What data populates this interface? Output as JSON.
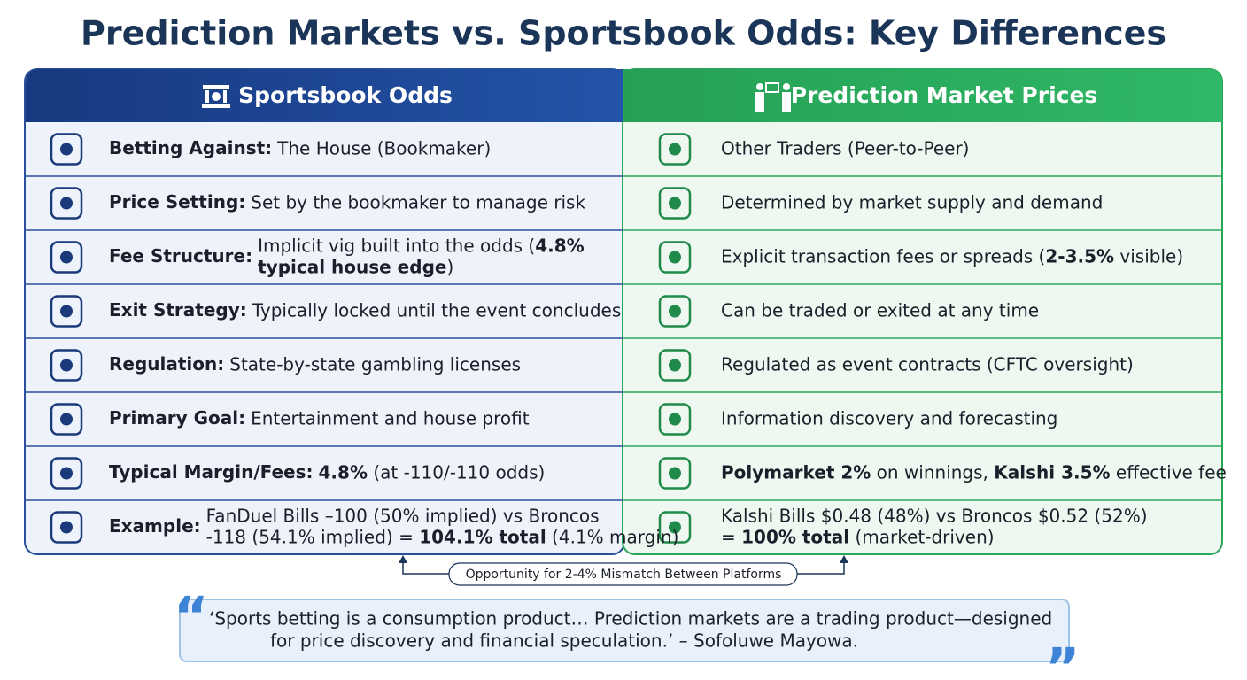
{
  "title": "Prediction Markets vs. Sportsbook Odds: Key Differences",
  "headers": {
    "left": "Sportsbook Odds",
    "right": "Prediction Market Prices"
  },
  "rows": [
    {
      "left": {
        "label": "Betting Against:",
        "lines": [
          [
            {
              "text": "The House (Bookmaker)"
            }
          ]
        ]
      },
      "right": {
        "lines": [
          [
            {
              "text": "Other Traders (Peer-to-Peer)"
            }
          ]
        ]
      }
    },
    {
      "left": {
        "label": "Price Setting:",
        "lines": [
          [
            {
              "text": "Set by the bookmaker to manage risk"
            }
          ]
        ]
      },
      "right": {
        "lines": [
          [
            {
              "text": "Determined by market supply and demand"
            }
          ]
        ]
      }
    },
    {
      "left": {
        "label": "Fee Structure:",
        "lines": [
          [
            {
              "text": "Implicit vig built into the odds ("
            },
            {
              "text": "4.8%",
              "bold": true
            }
          ],
          [
            {
              "text": "typical house edge",
              "bold": true
            },
            {
              "text": ")"
            }
          ]
        ]
      },
      "right": {
        "lines": [
          [
            {
              "text": "Explicit transaction fees or spreads ("
            },
            {
              "text": "2-3.5%",
              "bold": true
            },
            {
              "text": " visible)"
            }
          ]
        ]
      }
    },
    {
      "left": {
        "label": "Exit Strategy:",
        "lines": [
          [
            {
              "text": "Typically locked until the event concludes"
            }
          ]
        ]
      },
      "right": {
        "lines": [
          [
            {
              "text": "Can be traded or exited at any time"
            }
          ]
        ]
      }
    },
    {
      "left": {
        "label": "Regulation:",
        "lines": [
          [
            {
              "text": "State-by-state gambling licenses"
            }
          ]
        ]
      },
      "right": {
        "lines": [
          [
            {
              "text": "Regulated as event contracts (CFTC oversight)"
            }
          ]
        ]
      }
    },
    {
      "left": {
        "label": "Primary Goal:",
        "lines": [
          [
            {
              "text": "Entertainment and house profit"
            }
          ]
        ]
      },
      "right": {
        "lines": [
          [
            {
              "text": "Information discovery and forecasting"
            }
          ]
        ]
      }
    },
    {
      "left": {
        "label": "Typical Margin/Fees:",
        "lines": [
          [
            {
              "text": "4.8%",
              "bold": true
            },
            {
              "text": " (at -110/-110 odds)"
            }
          ]
        ]
      },
      "right": {
        "lines": [
          [
            {
              "text": "Polymarket 2%",
              "bold": true
            },
            {
              "text": " on winnings, "
            },
            {
              "text": "Kalshi 3.5%",
              "bold": true
            },
            {
              "text": " effective fee"
            }
          ]
        ]
      }
    },
    {
      "left": {
        "label": "Example:",
        "lines": [
          [
            {
              "text": "FanDuel Bills –100 (50% implied) vs Broncos"
            }
          ],
          [
            {
              "text": "-118 (54.1% implied) = "
            },
            {
              "text": "104.1% total",
              "bold": true
            },
            {
              "text": " (4.1% margin)"
            }
          ]
        ]
      },
      "right": {
        "lines": [
          [
            {
              "text": "Kalshi Bills $0.48 (48%) vs Broncos $0.52 (52%)"
            }
          ],
          [
            {
              "text": "= "
            },
            {
              "text": "100% total",
              "bold": true
            },
            {
              "text": " (market-driven)"
            }
          ]
        ]
      }
    }
  ],
  "connector_label": "Opportunity for 2-4% Mismatch Between Platforms",
  "quote": {
    "open_mark": "“",
    "close_mark": "”",
    "lines": [
      "‘Sports betting is a consumption product… Prediction markets are a trading product—designed",
      "for price discovery and financial speculation.’ – Sofoluwe Mayowa."
    ]
  }
}
